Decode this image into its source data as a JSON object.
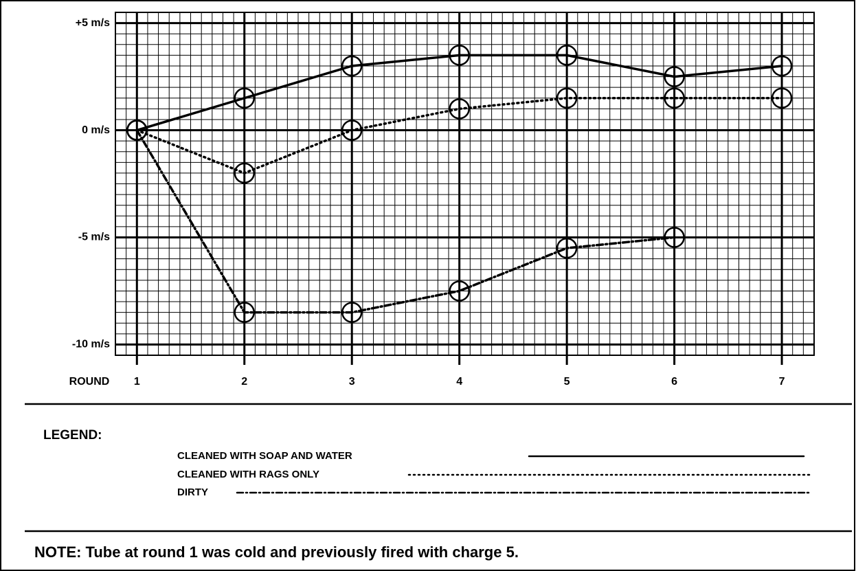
{
  "chart_data": {
    "type": "line",
    "x": [
      1,
      2,
      3,
      4,
      5,
      6,
      7
    ],
    "xlabel": "ROUND",
    "xlim": [
      0.8,
      7.3
    ],
    "xticks": [
      1,
      2,
      3,
      4,
      5,
      6,
      7
    ],
    "ylim": [
      -10.5,
      5.5
    ],
    "yticks": [
      {
        "value": 5,
        "label": "+5 m/s"
      },
      {
        "value": 0,
        "label": "0 m/s"
      },
      {
        "value": -5,
        "label": "-5 m/s"
      },
      {
        "value": -10,
        "label": "-10 m/s"
      }
    ],
    "grid": true,
    "minor_grid": {
      "x": 0.1,
      "y": 0.5
    },
    "series": [
      {
        "name": "CLEANED WITH SOAP AND WATER",
        "color": "#000000",
        "style": "solid",
        "values": [
          0,
          1.5,
          3,
          3.5,
          3.5,
          2.5,
          3
        ]
      },
      {
        "name": "CLEANED WITH RAGS ONLY",
        "color": "#000000",
        "style": "dotted",
        "values": [
          0,
          -2,
          0,
          1,
          1.5,
          1.5,
          1.5
        ]
      },
      {
        "name": "DIRTY",
        "color": "#000000",
        "style": "dashdot",
        "values": [
          0,
          -8.5,
          -8.5,
          -7.5,
          -5.5,
          -5,
          null
        ]
      }
    ],
    "legend_title": "LEGEND:",
    "note": "NOTE:  Tube at round 1 was cold and previously fired with charge 5."
  }
}
